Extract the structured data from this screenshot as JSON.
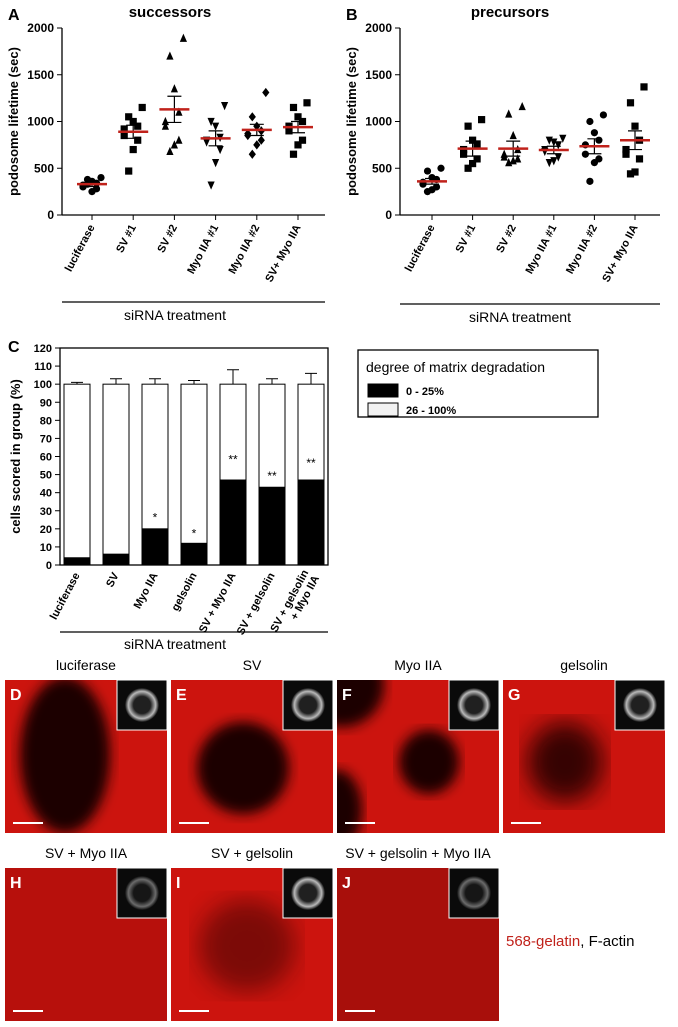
{
  "chart_data": [
    {
      "type": "dot",
      "panel": "A",
      "title": "successors",
      "y_label": "podosome lifetime (sec)",
      "x_label": "siRNA treatment",
      "categories": [
        "luciferase",
        "SV #1",
        "SV #2",
        "Myo IIA #1",
        "Myo IIA #2",
        "SV+ Myo IIA"
      ],
      "ylim": [
        0,
        2000
      ],
      "yticks": [
        0,
        500,
        1000,
        1500,
        2000
      ],
      "markers": [
        "circle",
        "square",
        "triangle",
        "down-triangle",
        "diamond",
        "square"
      ],
      "mean_color": "#c0221b",
      "points": [
        [
          400,
          380,
          360,
          340,
          320,
          300,
          280,
          250,
          330
        ],
        [
          1150,
          1050,
          1000,
          950,
          920,
          850,
          800,
          700,
          470
        ],
        [
          1890,
          1700,
          1350,
          1100,
          1000,
          950,
          800,
          750,
          680
        ],
        [
          1170,
          1000,
          950,
          830,
          800,
          780,
          700,
          560,
          320
        ],
        [
          1310,
          1050,
          950,
          900,
          870,
          850,
          800,
          750,
          650
        ],
        [
          1200,
          1150,
          1050,
          1000,
          950,
          900,
          800,
          750,
          650
        ]
      ],
      "means": [
        330,
        890,
        1130,
        820,
        910,
        940
      ],
      "errors": [
        25,
        70,
        140,
        80,
        60,
        60
      ]
    },
    {
      "type": "dot",
      "panel": "B",
      "title": "precursors",
      "y_label": "podosome lifetime (sec)",
      "x_label": "siRNA treatment",
      "categories": [
        "luciferase",
        "SV #1",
        "SV #2",
        "Myo IIA #1",
        "Myo IIA #2",
        "SV+ Myo IIA"
      ],
      "ylim": [
        0,
        2000
      ],
      "yticks": [
        0,
        500,
        1000,
        1500,
        2000
      ],
      "markers": [
        "circle",
        "square",
        "triangle",
        "down-triangle",
        "circle",
        "square"
      ],
      "mean_color": "#c0221b",
      "points": [
        [
          500,
          470,
          400,
          380,
          350,
          330,
          300,
          270,
          250
        ],
        [
          1020,
          950,
          800,
          760,
          700,
          650,
          600,
          550,
          500
        ],
        [
          1160,
          1080,
          850,
          700,
          650,
          620,
          600,
          580,
          560
        ],
        [
          820,
          800,
          780,
          750,
          700,
          680,
          620,
          580,
          560
        ],
        [
          1070,
          1000,
          880,
          800,
          750,
          650,
          600,
          560,
          360
        ],
        [
          1370,
          1200,
          950,
          800,
          700,
          650,
          600,
          460,
          440
        ]
      ],
      "means": [
        360,
        710,
        710,
        695,
        735,
        800
      ],
      "errors": [
        30,
        80,
        80,
        40,
        80,
        100
      ]
    },
    {
      "type": "stacked_bar",
      "panel": "C",
      "y_label": "cells scored in group (%)",
      "x_label": "siRNA treatment",
      "categories": [
        "luciferase",
        "SV",
        "Myo IIA",
        "gelsolin",
        "SV + Myo IIA",
        "SV + gelsolin",
        "SV + gelsolin\n+ Myo IIA"
      ],
      "ylim": [
        0,
        120
      ],
      "yticks": [
        0,
        10,
        20,
        30,
        40,
        50,
        60,
        70,
        80,
        90,
        100,
        110,
        120
      ],
      "legend_title": "degree of matrix degradation",
      "series": [
        {
          "name": "0 - 25%",
          "color": "#000000",
          "values": [
            4,
            6,
            20,
            12,
            47,
            43,
            47
          ],
          "errors": [
            1,
            3,
            3,
            2,
            8,
            3,
            6
          ]
        },
        {
          "name": "26 - 100%",
          "color": "#ffffff",
          "values": [
            96,
            94,
            80,
            88,
            53,
            57,
            53
          ],
          "errors": [
            1,
            3,
            3,
            2,
            8,
            3,
            6
          ]
        }
      ],
      "annotations": [
        {
          "index": 2,
          "text": "*"
        },
        {
          "index": 3,
          "text": "*"
        },
        {
          "index": 4,
          "text": "**"
        },
        {
          "index": 5,
          "text": "**"
        },
        {
          "index": 6,
          "text": "**"
        }
      ]
    }
  ],
  "images": [
    {
      "letter": "D",
      "caption": "luciferase"
    },
    {
      "letter": "E",
      "caption": "SV"
    },
    {
      "letter": "F",
      "caption": "Myo IIA"
    },
    {
      "letter": "G",
      "caption": "gelsolin"
    },
    {
      "letter": "H",
      "caption": "SV + Myo IIA"
    },
    {
      "letter": "I",
      "caption": "SV + gelsolin"
    },
    {
      "letter": "J",
      "caption": "SV + gelsolin + Myo IIA"
    }
  ],
  "stain_legend": {
    "red": "568-gelatin",
    "black": "F-actin"
  }
}
